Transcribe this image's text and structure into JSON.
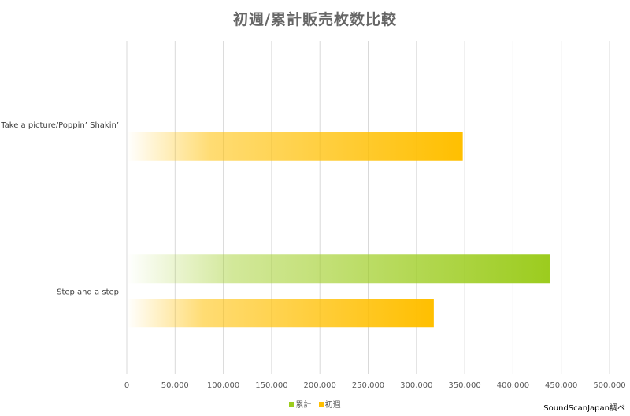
{
  "chart_data": {
    "type": "bar",
    "orientation": "horizontal",
    "title": "初週/累計販売枚数比較",
    "categories": [
      "Take a picture/Poppin’ Shakin’",
      "Step and a step"
    ],
    "series": [
      {
        "name": "累計",
        "color": "#9ccc1e",
        "values": [
          null,
          438000
        ]
      },
      {
        "name": "初週",
        "color": "#ffbf00",
        "values": [
          348000,
          318000
        ]
      }
    ],
    "xlim": [
      0,
      500000
    ],
    "xticks": [
      0,
      50000,
      100000,
      150000,
      200000,
      250000,
      300000,
      350000,
      400000,
      450000,
      500000
    ],
    "xtick_labels": [
      "0",
      "50,000",
      "100,000",
      "150,000",
      "200,000",
      "250,000",
      "300,000",
      "350,000",
      "400,000",
      "450,000",
      "500,000"
    ],
    "grid": true,
    "legend_position": "bottom"
  },
  "credit": "SoundScanJapan調べ"
}
